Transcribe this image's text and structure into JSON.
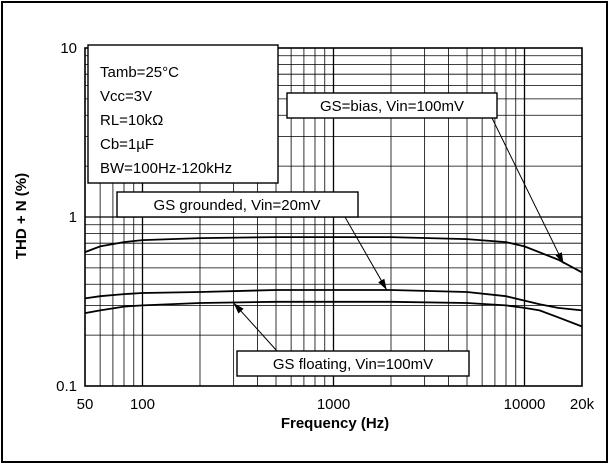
{
  "chart_data": {
    "type": "line",
    "xscale": "log",
    "yscale": "log",
    "xlim": [
      50,
      20000
    ],
    "ylim": [
      0.1,
      10
    ],
    "xlabel": "Frequency (Hz)",
    "ylabel": "THD + N (%)",
    "x_ticks": [
      {
        "value": 50,
        "label": "50"
      },
      {
        "value": 100,
        "label": "100"
      },
      {
        "value": 1000,
        "label": "1000"
      },
      {
        "value": 10000,
        "label": "10000"
      },
      {
        "value": 20000,
        "label": "20k"
      }
    ],
    "y_ticks": [
      {
        "value": 0.1,
        "label": "0.1"
      },
      {
        "value": 1,
        "label": "1"
      },
      {
        "value": 10,
        "label": "10"
      }
    ],
    "grid": true,
    "conditions": [
      "Tamb=25°C",
      "Vcc=3V",
      "RL=10kΩ",
      "Cb=1µF",
      "BW=100Hz-120kHz"
    ],
    "series": [
      {
        "name": "GS=bias, Vin=100mV",
        "x": [
          50,
          60,
          80,
          100,
          200,
          500,
          1000,
          2000,
          5000,
          8000,
          10000,
          15000,
          20000
        ],
        "y": [
          0.62,
          0.67,
          0.71,
          0.73,
          0.75,
          0.76,
          0.76,
          0.76,
          0.74,
          0.71,
          0.67,
          0.56,
          0.47
        ]
      },
      {
        "name": "GS grounded, Vin=20mV",
        "x": [
          50,
          60,
          80,
          100,
          200,
          500,
          1000,
          2000,
          5000,
          8000,
          10000,
          12000,
          15000,
          20000
        ],
        "y": [
          0.33,
          0.34,
          0.35,
          0.355,
          0.36,
          0.37,
          0.37,
          0.37,
          0.36,
          0.34,
          0.32,
          0.305,
          0.29,
          0.28
        ]
      },
      {
        "name": "GS floating, Vin=100mV",
        "x": [
          50,
          60,
          80,
          100,
          200,
          500,
          1000,
          2000,
          5000,
          8000,
          10000,
          12000,
          15000,
          20000
        ],
        "y": [
          0.27,
          0.28,
          0.295,
          0.3,
          0.31,
          0.315,
          0.315,
          0.315,
          0.31,
          0.3,
          0.29,
          0.28,
          0.255,
          0.225
        ]
      }
    ],
    "annotations": [
      {
        "text": "GS=bias, Vin=100mV",
        "series": 0,
        "point": [
          16000,
          0.53
        ]
      },
      {
        "text": "GS grounded, Vin=20mV",
        "series": 1,
        "point": [
          1900,
          0.37
        ]
      },
      {
        "text": "GS floating, Vin=100mV",
        "series": 2,
        "point": [
          300,
          0.31
        ]
      }
    ]
  }
}
